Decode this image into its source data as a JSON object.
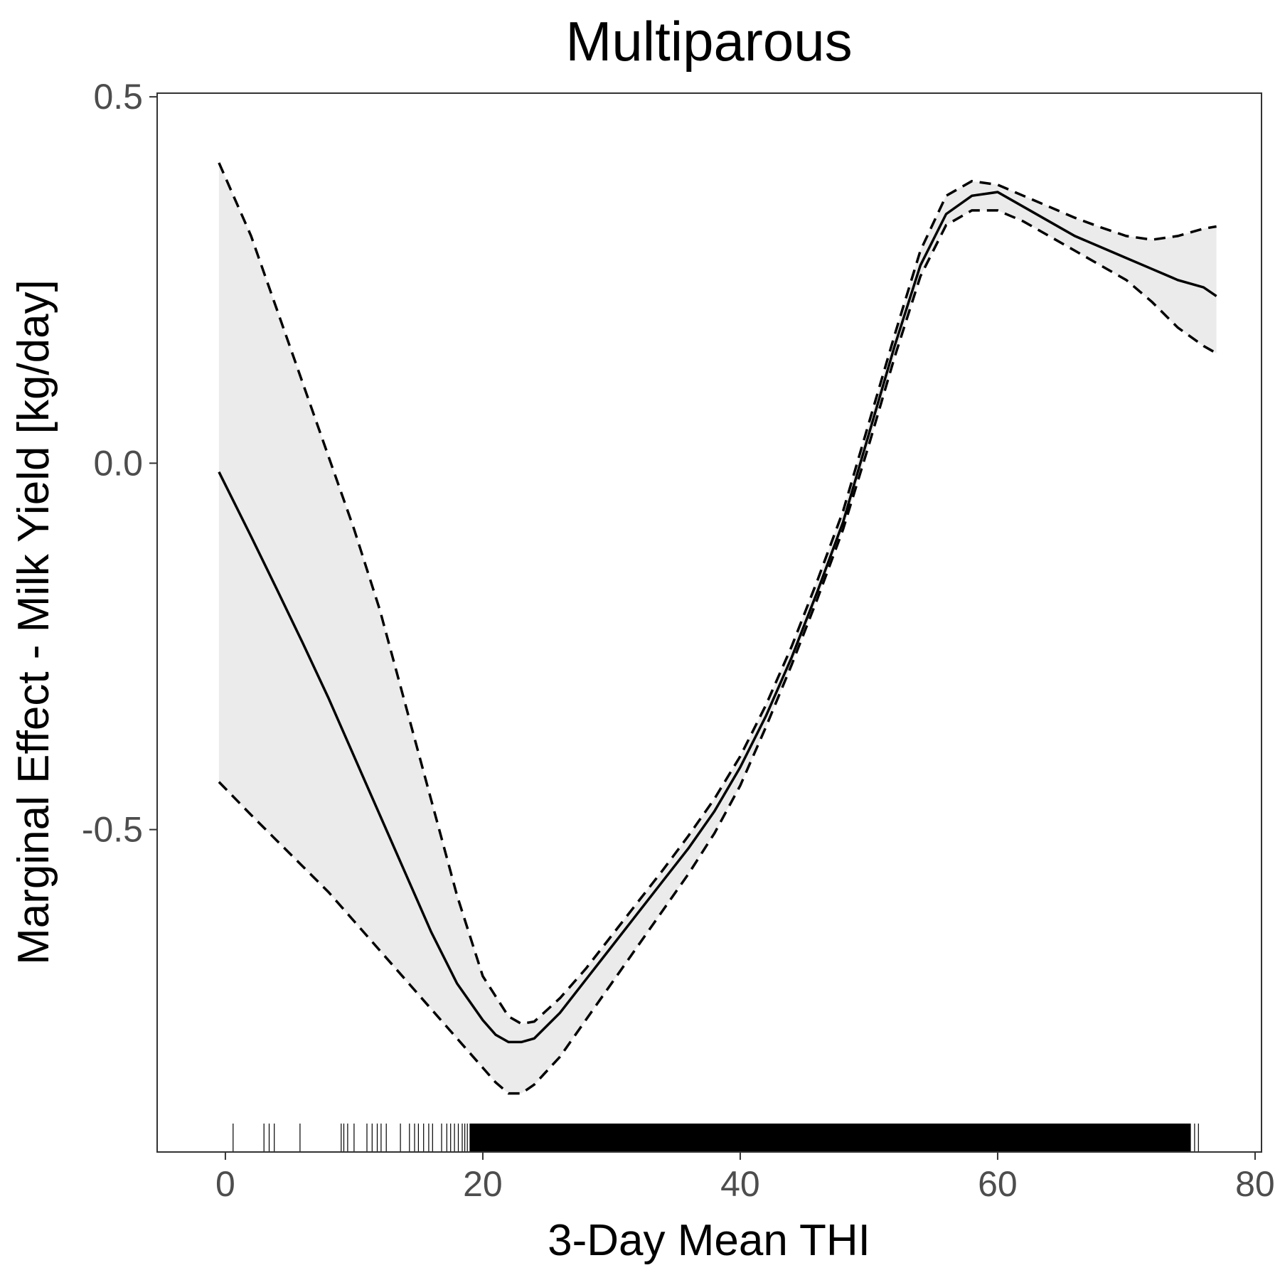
{
  "chart_data": {
    "type": "line",
    "title": "Multiparous",
    "xlabel": "3-Day Mean THI",
    "ylabel": "Marginal Effect - Milk Yield [kg/day]",
    "xlim": [
      -5.3,
      80.5
    ],
    "ylim": [
      -0.94,
      0.505
    ],
    "xticks": [
      0,
      20,
      40,
      60,
      80
    ],
    "xtick_labels": [
      "0",
      "20",
      "40",
      "60",
      "80"
    ],
    "yticks": [
      0.5,
      0.0,
      -0.5
    ],
    "ytick_labels": [
      "0.5",
      "0.0",
      "-0.5"
    ],
    "grid": false,
    "legend": "none",
    "colors": {
      "line": "#000000",
      "band": "#ebebeb",
      "frame": "#333333"
    },
    "series": [
      {
        "role": "estimate",
        "style": "solid",
        "x": [
          -0.5,
          2,
          4,
          6,
          8,
          10,
          12,
          14,
          16,
          18,
          20,
          21,
          22,
          23,
          24,
          26,
          28,
          30,
          32,
          34,
          36,
          38,
          40,
          42,
          44,
          46,
          48,
          50,
          52,
          54,
          56,
          58,
          60,
          62,
          64,
          66,
          68,
          70,
          72,
          74,
          76,
          77
        ],
        "y": [
          -0.012,
          -0.1,
          -0.172,
          -0.245,
          -0.32,
          -0.4,
          -0.48,
          -0.56,
          -0.64,
          -0.71,
          -0.76,
          -0.78,
          -0.79,
          -0.79,
          -0.785,
          -0.75,
          -0.705,
          -0.66,
          -0.615,
          -0.57,
          -0.525,
          -0.475,
          -0.415,
          -0.345,
          -0.265,
          -0.175,
          -0.08,
          0.04,
          0.16,
          0.27,
          0.34,
          0.365,
          0.37,
          0.35,
          0.33,
          0.31,
          0.295,
          0.28,
          0.265,
          0.25,
          0.24,
          0.228
        ]
      },
      {
        "role": "upper",
        "style": "dashed",
        "x": [
          -0.5,
          2,
          4,
          6,
          8,
          10,
          12,
          14,
          16,
          18,
          20,
          22,
          23,
          24,
          26,
          28,
          30,
          32,
          34,
          36,
          38,
          40,
          42,
          44,
          46,
          48,
          50,
          52,
          54,
          56,
          58,
          60,
          62,
          64,
          66,
          68,
          70,
          72,
          74,
          76,
          77
        ],
        "y": [
          0.41,
          0.31,
          0.21,
          0.11,
          0.01,
          -0.09,
          -0.2,
          -0.33,
          -0.46,
          -0.59,
          -0.7,
          -0.755,
          -0.765,
          -0.762,
          -0.73,
          -0.69,
          -0.645,
          -0.6,
          -0.555,
          -0.508,
          -0.458,
          -0.4,
          -0.33,
          -0.25,
          -0.16,
          -0.065,
          0.055,
          0.175,
          0.29,
          0.365,
          0.385,
          0.38,
          0.365,
          0.35,
          0.335,
          0.322,
          0.31,
          0.305,
          0.31,
          0.32,
          0.323
        ]
      },
      {
        "role": "lower",
        "style": "dashed",
        "x": [
          -0.5,
          2,
          4,
          6,
          8,
          10,
          12,
          14,
          16,
          18,
          20,
          21,
          22,
          23,
          24,
          26,
          28,
          30,
          32,
          34,
          36,
          38,
          40,
          42,
          44,
          46,
          48,
          50,
          52,
          54,
          56,
          58,
          60,
          62,
          64,
          66,
          68,
          70,
          72,
          74,
          76,
          77
        ],
        "y": [
          -0.435,
          -0.48,
          -0.515,
          -0.55,
          -0.585,
          -0.625,
          -0.665,
          -0.705,
          -0.745,
          -0.785,
          -0.825,
          -0.845,
          -0.86,
          -0.86,
          -0.848,
          -0.81,
          -0.76,
          -0.71,
          -0.66,
          -0.61,
          -0.56,
          -0.505,
          -0.44,
          -0.36,
          -0.275,
          -0.185,
          -0.09,
          0.025,
          0.145,
          0.255,
          0.325,
          0.345,
          0.345,
          0.33,
          0.31,
          0.29,
          0.27,
          0.25,
          0.22,
          0.185,
          0.16,
          0.15
        ]
      }
    ],
    "rug": {
      "x": [
        0.6,
        3.0,
        3.4,
        3.8,
        5.8,
        9.0,
        9.2,
        9.5,
        10.0,
        11.0,
        11.4,
        11.8,
        12.1,
        12.5,
        13.6,
        14.3,
        14.7,
        15.0,
        15.4,
        15.8,
        16.1,
        16.8,
        17.2,
        17.5,
        17.8,
        18.1,
        18.4,
        18.6,
        18.8,
        75.3,
        75.6
      ]
    }
  }
}
